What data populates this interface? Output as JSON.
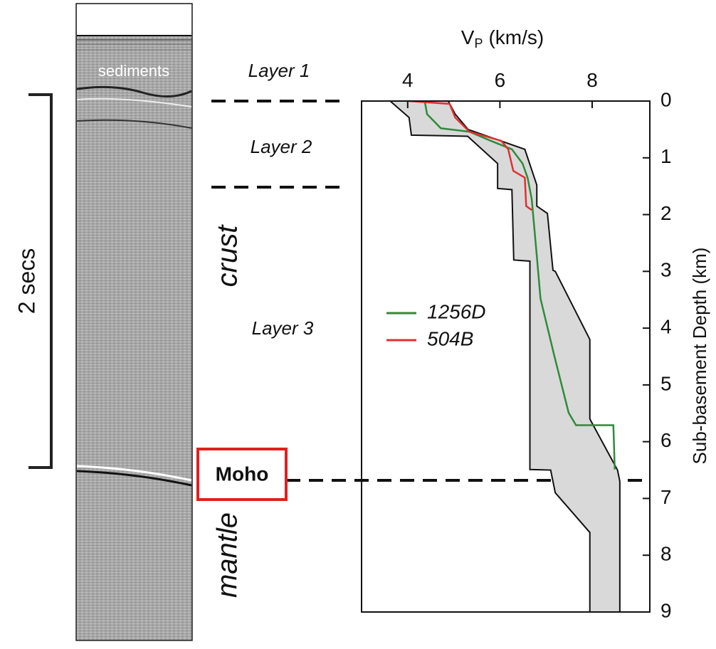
{
  "chart_data": {
    "type": "line",
    "x_label": {
      "main": "V",
      "sub": "P",
      "unit": "(km/s)"
    },
    "y_label": "Sub-basement Depth (km)",
    "xlim": [
      3,
      9.25
    ],
    "ylim": [
      9,
      0
    ],
    "xticks": [
      4,
      6,
      8
    ],
    "yticks": [
      0,
      1,
      2,
      3,
      4,
      5,
      6,
      7,
      8,
      9
    ],
    "envelope": {
      "color": "#d9d9d9",
      "min": {
        "x": [
          3.62,
          4.03,
          4.08,
          5.3,
          5.95,
          5.95,
          6.26,
          6.3,
          6.65,
          6.65,
          7.1,
          7.2,
          7.95,
          7.95
        ],
        "values": [
          0,
          0.29,
          0.6,
          0.62,
          1.1,
          1.54,
          1.56,
          2.8,
          2.82,
          6.49,
          6.5,
          6.9,
          7.6,
          9
        ]
      },
      "max": {
        "x": [
          4.88,
          5.03,
          5.31,
          6.54,
          6.8,
          6.8,
          7.03,
          7.15,
          7.2,
          7.95,
          7.95,
          8.55,
          8.6,
          8.6
        ],
        "values": [
          0,
          0.23,
          0.5,
          0.85,
          1.48,
          1.85,
          1.98,
          2.98,
          3.0,
          4.2,
          5.6,
          6.5,
          6.7,
          9
        ]
      }
    },
    "series": [
      {
        "name": "1256D",
        "color": "#2e8b3a",
        "x": [
          4.37,
          4.42,
          4.72,
          5.34,
          5.8,
          6.26,
          6.49,
          6.6,
          6.69,
          6.8,
          6.88,
          7.18,
          7.49,
          7.65,
          8.46,
          8.49
        ],
        "values": [
          0,
          0.23,
          0.48,
          0.54,
          0.7,
          0.85,
          1.1,
          1.35,
          1.73,
          2.73,
          3.48,
          4.49,
          5.49,
          5.71,
          5.71,
          6.49
        ]
      },
      {
        "name": "504B",
        "color": "#e03030",
        "x": [
          4.03,
          4.91,
          5.03,
          5.34,
          6.03,
          6.18,
          6.29,
          6.54,
          6.57,
          6.69
        ],
        "values": [
          0,
          0.05,
          0.29,
          0.54,
          0.7,
          0.85,
          1.23,
          1.35,
          1.85,
          1.92
        ]
      }
    ],
    "annotations": {
      "sediments": "sediments",
      "time_scale": "2 secs",
      "layer1": "Layer 1",
      "layer2": "Layer 2",
      "layer3": "Layer 3",
      "crust": "crust",
      "mantle": "mantle",
      "moho": "Moho"
    }
  }
}
